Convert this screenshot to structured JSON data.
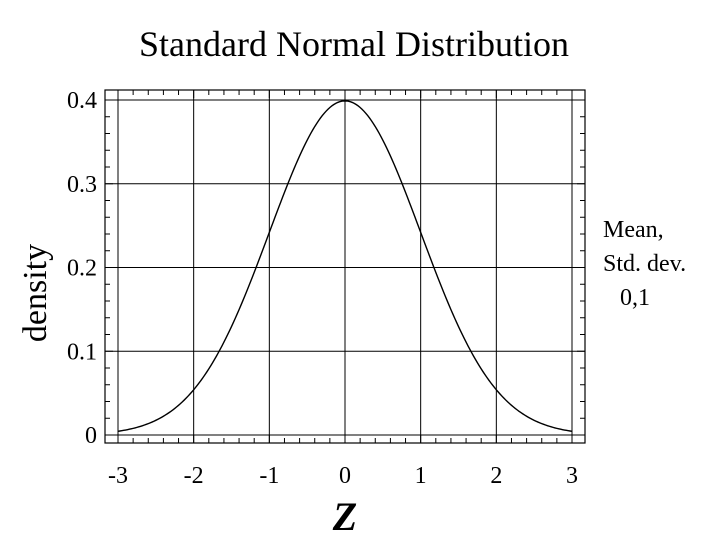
{
  "chart_data": {
    "type": "line",
    "title": "Standard Normal Distribution",
    "xlabel": "Z",
    "ylabel": "density",
    "xlim": [
      -3,
      3
    ],
    "ylim": [
      0,
      0.4
    ],
    "grid": true,
    "x_ticks": [
      -3,
      -2,
      -1,
      0,
      1,
      2,
      3
    ],
    "x_tick_labels": [
      "-3",
      "-2",
      "-1",
      "0",
      "1",
      "2",
      "3"
    ],
    "y_ticks": [
      0,
      0.1,
      0.2,
      0.3,
      0.4
    ],
    "y_tick_labels": [
      "0",
      "0.1",
      "0.2",
      "0.3",
      "0.4"
    ],
    "legend": {
      "lines": [
        "Mean,",
        "Std. dev.",
        "0,1"
      ],
      "placement": "right"
    },
    "series": [
      {
        "x": [
          -3,
          -2.75,
          -2.5,
          -2.25,
          -2,
          -1.75,
          -1.5,
          -1.25,
          -1,
          -0.75,
          -0.5,
          -0.25,
          0,
          0.25,
          0.5,
          0.75,
          1,
          1.25,
          1.5,
          1.75,
          2,
          2.25,
          2.5,
          2.75,
          3
        ],
        "y": [
          0.0044,
          0.0091,
          0.0175,
          0.0317,
          0.054,
          0.0863,
          0.1295,
          0.1826,
          0.242,
          0.3011,
          0.3521,
          0.3867,
          0.3989,
          0.3867,
          0.3521,
          0.3011,
          0.242,
          0.1826,
          0.1295,
          0.0863,
          0.054,
          0.0317,
          0.0175,
          0.0091,
          0.0044
        ]
      }
    ]
  }
}
